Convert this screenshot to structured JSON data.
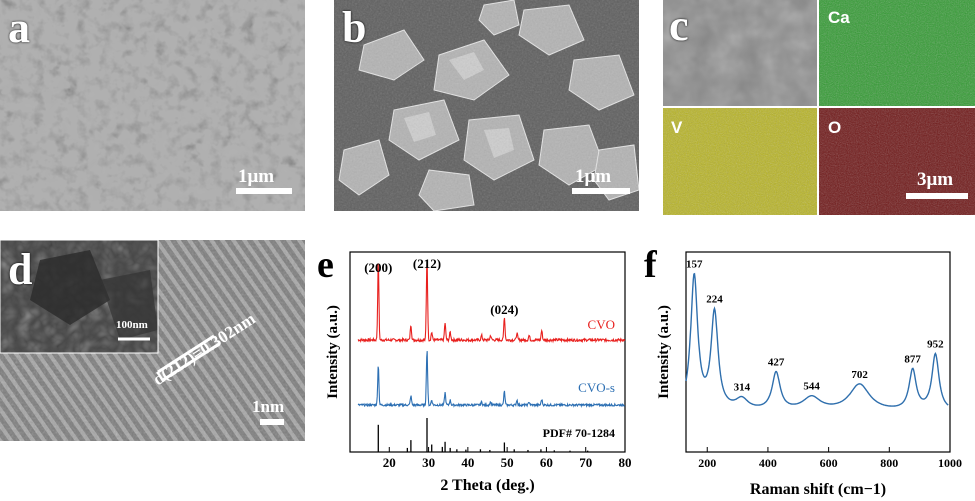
{
  "panels": {
    "a": {
      "letter": "a",
      "scale_bar": "1μm"
    },
    "b": {
      "letter": "b",
      "scale_bar": "1μm"
    },
    "c": {
      "letter": "c",
      "maps": [
        "Ca",
        "V",
        "O"
      ],
      "scale_bar": "3μm"
    },
    "d": {
      "letter": "d",
      "inset_scale": "100nm",
      "spacing_label": "d(212)=0.302nm",
      "scale_bar": "1nm"
    },
    "e": {
      "letter": "e",
      "f_letter": "f"
    }
  },
  "colors": {
    "cvo": "#e8201e",
    "cvo_s": "#2c6fb3",
    "pdf": "#000000",
    "raman": "#2f6fad",
    "ca_map": "#2e9a2e",
    "v_map": "#b8b420",
    "o_map": "#6e1414"
  },
  "chart_data": [
    {
      "type": "line",
      "panel": "e",
      "xlabel": "2 Theta (deg.)",
      "ylabel": "Intensity (a.u.)",
      "xlim": [
        10,
        80
      ],
      "xticks": [
        20,
        30,
        40,
        50,
        60,
        70,
        80
      ],
      "series": [
        {
          "name": "CVO",
          "peaks": [
            [
              17.2,
              1.0
            ],
            [
              25.5,
              0.2
            ],
            [
              29.6,
              1.05
            ],
            [
              30.8,
              0.1
            ],
            [
              34.2,
              0.22
            ],
            [
              35.5,
              0.1
            ],
            [
              43.5,
              0.06
            ],
            [
              45.8,
              0.06
            ],
            [
              49.3,
              0.3
            ],
            [
              52.5,
              0.09
            ],
            [
              55.6,
              0.06
            ],
            [
              58.8,
              0.12
            ]
          ]
        },
        {
          "name": "CVO-s",
          "peaks": [
            [
              17.2,
              0.65
            ],
            [
              25.5,
              0.15
            ],
            [
              29.6,
              0.9
            ],
            [
              30.8,
              0.08
            ],
            [
              34.2,
              0.2
            ],
            [
              35.5,
              0.08
            ],
            [
              43.5,
              0.05
            ],
            [
              45.8,
              0.05
            ],
            [
              49.3,
              0.22
            ],
            [
              52.5,
              0.08
            ],
            [
              55.6,
              0.05
            ],
            [
              58.8,
              0.09
            ]
          ]
        },
        {
          "name": "PDF# 70-1284",
          "sticks": [
            [
              17.2,
              0.8
            ],
            [
              24.6,
              0.12
            ],
            [
              25.5,
              0.35
            ],
            [
              29.6,
              1.0
            ],
            [
              30.8,
              0.22
            ],
            [
              33.5,
              0.15
            ],
            [
              34.2,
              0.3
            ],
            [
              35.5,
              0.12
            ],
            [
              37.2,
              0.08
            ],
            [
              39.5,
              0.07
            ],
            [
              43.2,
              0.08
            ],
            [
              45.6,
              0.06
            ],
            [
              49.3,
              0.28
            ],
            [
              51.8,
              0.08
            ],
            [
              55.3,
              0.06
            ],
            [
              58.6,
              0.08
            ],
            [
              62.0,
              0.05
            ],
            [
              66.0,
              0.04
            ],
            [
              70.5,
              0.04
            ]
          ]
        }
      ],
      "annotations": [
        "(200)",
        "(212)",
        "(024)"
      ]
    },
    {
      "type": "line",
      "panel": "f",
      "xlabel": "Raman shift (cm−1)",
      "ylabel": "Intensity (a.u.)",
      "xlim": [
        130,
        1000
      ],
      "xticks": [
        200,
        400,
        600,
        800,
        1000
      ],
      "peaks": [
        [
          157,
          1.0
        ],
        [
          224,
          0.72
        ],
        [
          314,
          0.08
        ],
        [
          427,
          0.28
        ],
        [
          544,
          0.1
        ],
        [
          702,
          0.2
        ],
        [
          877,
          0.3
        ],
        [
          952,
          0.42
        ]
      ],
      "peak_labels": [
        "157",
        "224",
        "314",
        "427",
        "544",
        "702",
        "877",
        "952"
      ]
    }
  ]
}
